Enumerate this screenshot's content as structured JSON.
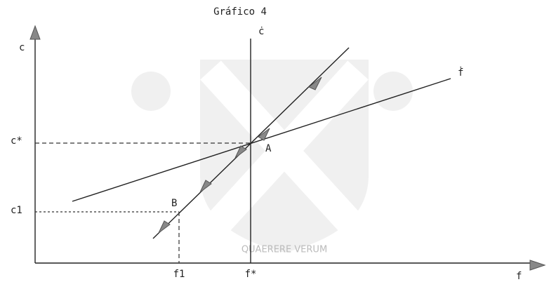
{
  "title": "Gráfico 4",
  "axes": {
    "y": "c",
    "x": "f"
  },
  "curves": {
    "c_dot": "ċ",
    "f_dot": "ḟ"
  },
  "points": {
    "A": "A",
    "B": "B"
  },
  "levels": {
    "c_star": "c*",
    "c1": "c1",
    "f_star": "f*",
    "f1": "f1"
  },
  "watermark": "QUAERERE VERUM"
}
